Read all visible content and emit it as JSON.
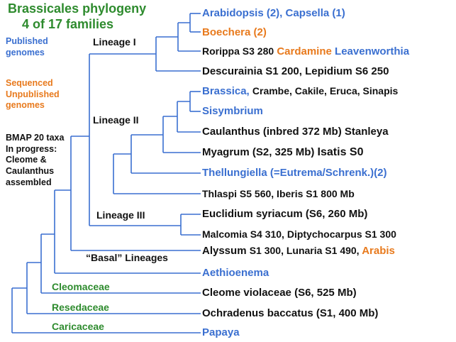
{
  "title": {
    "line1": "Brassicales phylogeny",
    "line2": "4 of 17 families"
  },
  "legend": {
    "published": [
      "Published",
      "genomes"
    ],
    "sequenced": [
      "Sequenced",
      "Unpublished",
      "genomes"
    ],
    "bmap": [
      "BMAP 20 taxa",
      "In progress:",
      "Cleome &",
      "Caulanthus",
      "assembled"
    ]
  },
  "clades": {
    "lineage1": "Lineage I",
    "lineage2": "Lineage II",
    "lineage3": "Lineage III",
    "basal": "“Basal” Lineages"
  },
  "families": {
    "cleomaceae": "Cleomaceae",
    "resedaceae": "Resedaceae",
    "caricaceae": "Caricaceae"
  },
  "leaves": {
    "arabidopsis": "Arabidopsis (2), Capsella (1)",
    "boechera": "Boechera (2)",
    "rorippa": {
      "a": "Rorippa S3 280",
      "b": "Cardamine",
      "c": "Leavenworthia"
    },
    "descurainia": "Descurainia S1 200, Lepidium S6 250",
    "brassica": {
      "a": "Brassica,",
      "b": "Crambe, Cakile, Eruca, Sinapis"
    },
    "sisymbrium": "Sisymbrium",
    "caulanthus": "Caulanthus (inbred 372 Mb) Stanleya",
    "myagrum": {
      "a": "Myagrum (S2, 325 Mb)",
      "b": "Isatis S0"
    },
    "thellungiella": "Thellungiella (=Eutrema/Schrenk.)(2)",
    "thlaspi": "Thlaspi S5 560, Iberis S1 800 Mb",
    "euclidium": "Euclidium syriacum (S6, 260 Mb)",
    "malcomia": "Malcomia S4 310, Diptychocarpus S1 300",
    "alyssum": {
      "a": "Alyssum",
      "b": "S1 300, Lunaria S1 490,",
      "c": "Arabis"
    },
    "aethionema": "Aethioenema",
    "cleome": "Cleome violaceae (S6, 525 Mb)",
    "ochradenus": "Ochradenus baccatus (S1, 400 Mb)",
    "papaya": "Papaya"
  },
  "colors": {
    "branch": "#3a6fd0",
    "published": "#3a6fd0",
    "unpublished": "#e87a1d",
    "family": "#2e8b2e",
    "text": "#111111"
  }
}
